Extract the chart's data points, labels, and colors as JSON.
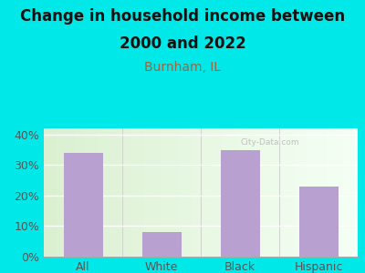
{
  "categories": [
    "All",
    "White",
    "Black",
    "Hispanic"
  ],
  "values": [
    34,
    8,
    35,
    23
  ],
  "bar_color": "#b8a0d0",
  "title_line1": "Change in household income between",
  "title_line2": "2000 and 2022",
  "subtitle": "Burnham, IL",
  "subtitle_color": "#996644",
  "title_color": "#111111",
  "background_color": "#00e8e8",
  "plot_bg_left": "#daf0d0",
  "plot_bg_right": "#f5fff5",
  "yticks": [
    0,
    10,
    20,
    30,
    40
  ],
  "ylim": [
    0,
    42
  ],
  "title_fontsize": 12,
  "subtitle_fontsize": 10,
  "tick_fontsize": 9,
  "watermark": "City-Data.com"
}
